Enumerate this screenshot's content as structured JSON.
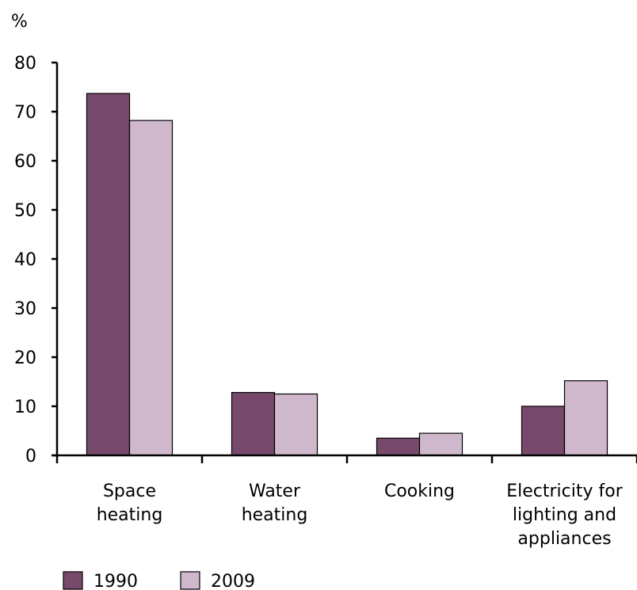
{
  "chart_data": {
    "type": "bar",
    "ylabel": "%",
    "ylim": [
      0,
      80
    ],
    "yticks": [
      0,
      10,
      20,
      30,
      40,
      50,
      60,
      70,
      80
    ],
    "categories": [
      [
        "Space",
        "heating"
      ],
      [
        "Water",
        "heating"
      ],
      [
        "Cooking"
      ],
      [
        "Electricity for",
        "lighting and",
        "appliances"
      ]
    ],
    "series": [
      {
        "name": "1990",
        "color": "#774a6c",
        "values": [
          73.7,
          12.8,
          3.5,
          10.0
        ]
      },
      {
        "name": "2009",
        "color": "#d0b8cc",
        "values": [
          68.2,
          12.5,
          4.5,
          15.2
        ]
      }
    ],
    "grid": false,
    "legend": "bottom-left"
  }
}
